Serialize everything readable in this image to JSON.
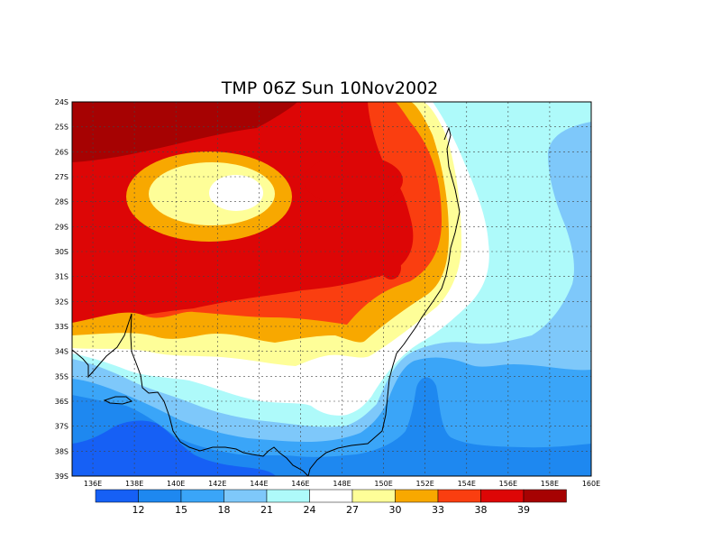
{
  "title": "TMP 06Z Sun 10Nov2002",
  "map": {
    "lat_labels": [
      "24S",
      "25S",
      "26S",
      "27S",
      "28S",
      "29S",
      "30S",
      "31S",
      "32S",
      "33S",
      "34S",
      "35S",
      "36S",
      "37S",
      "38S",
      "39S"
    ],
    "lon_labels": [
      "136E",
      "138E",
      "140E",
      "142E",
      "144E",
      "146E",
      "148E",
      "150E",
      "152E",
      "154E",
      "156E",
      "158E",
      "160E"
    ],
    "lat_range": [
      -39,
      -24
    ],
    "lon_range": [
      135,
      160
    ],
    "grid": "dotted",
    "coastline_color": "#000000"
  },
  "colorbar": {
    "labels": [
      "12",
      "15",
      "18",
      "21",
      "24",
      "27",
      "30",
      "33",
      "38",
      "39"
    ],
    "colors": [
      "#1660f5",
      "#1e88f0",
      "#3aa5f8",
      "#7ec8fa",
      "#aefafa",
      "#ffffff",
      "#fefe98",
      "#f8a800",
      "#fa3e10",
      "#dd0606",
      "#a60202"
    ]
  }
}
